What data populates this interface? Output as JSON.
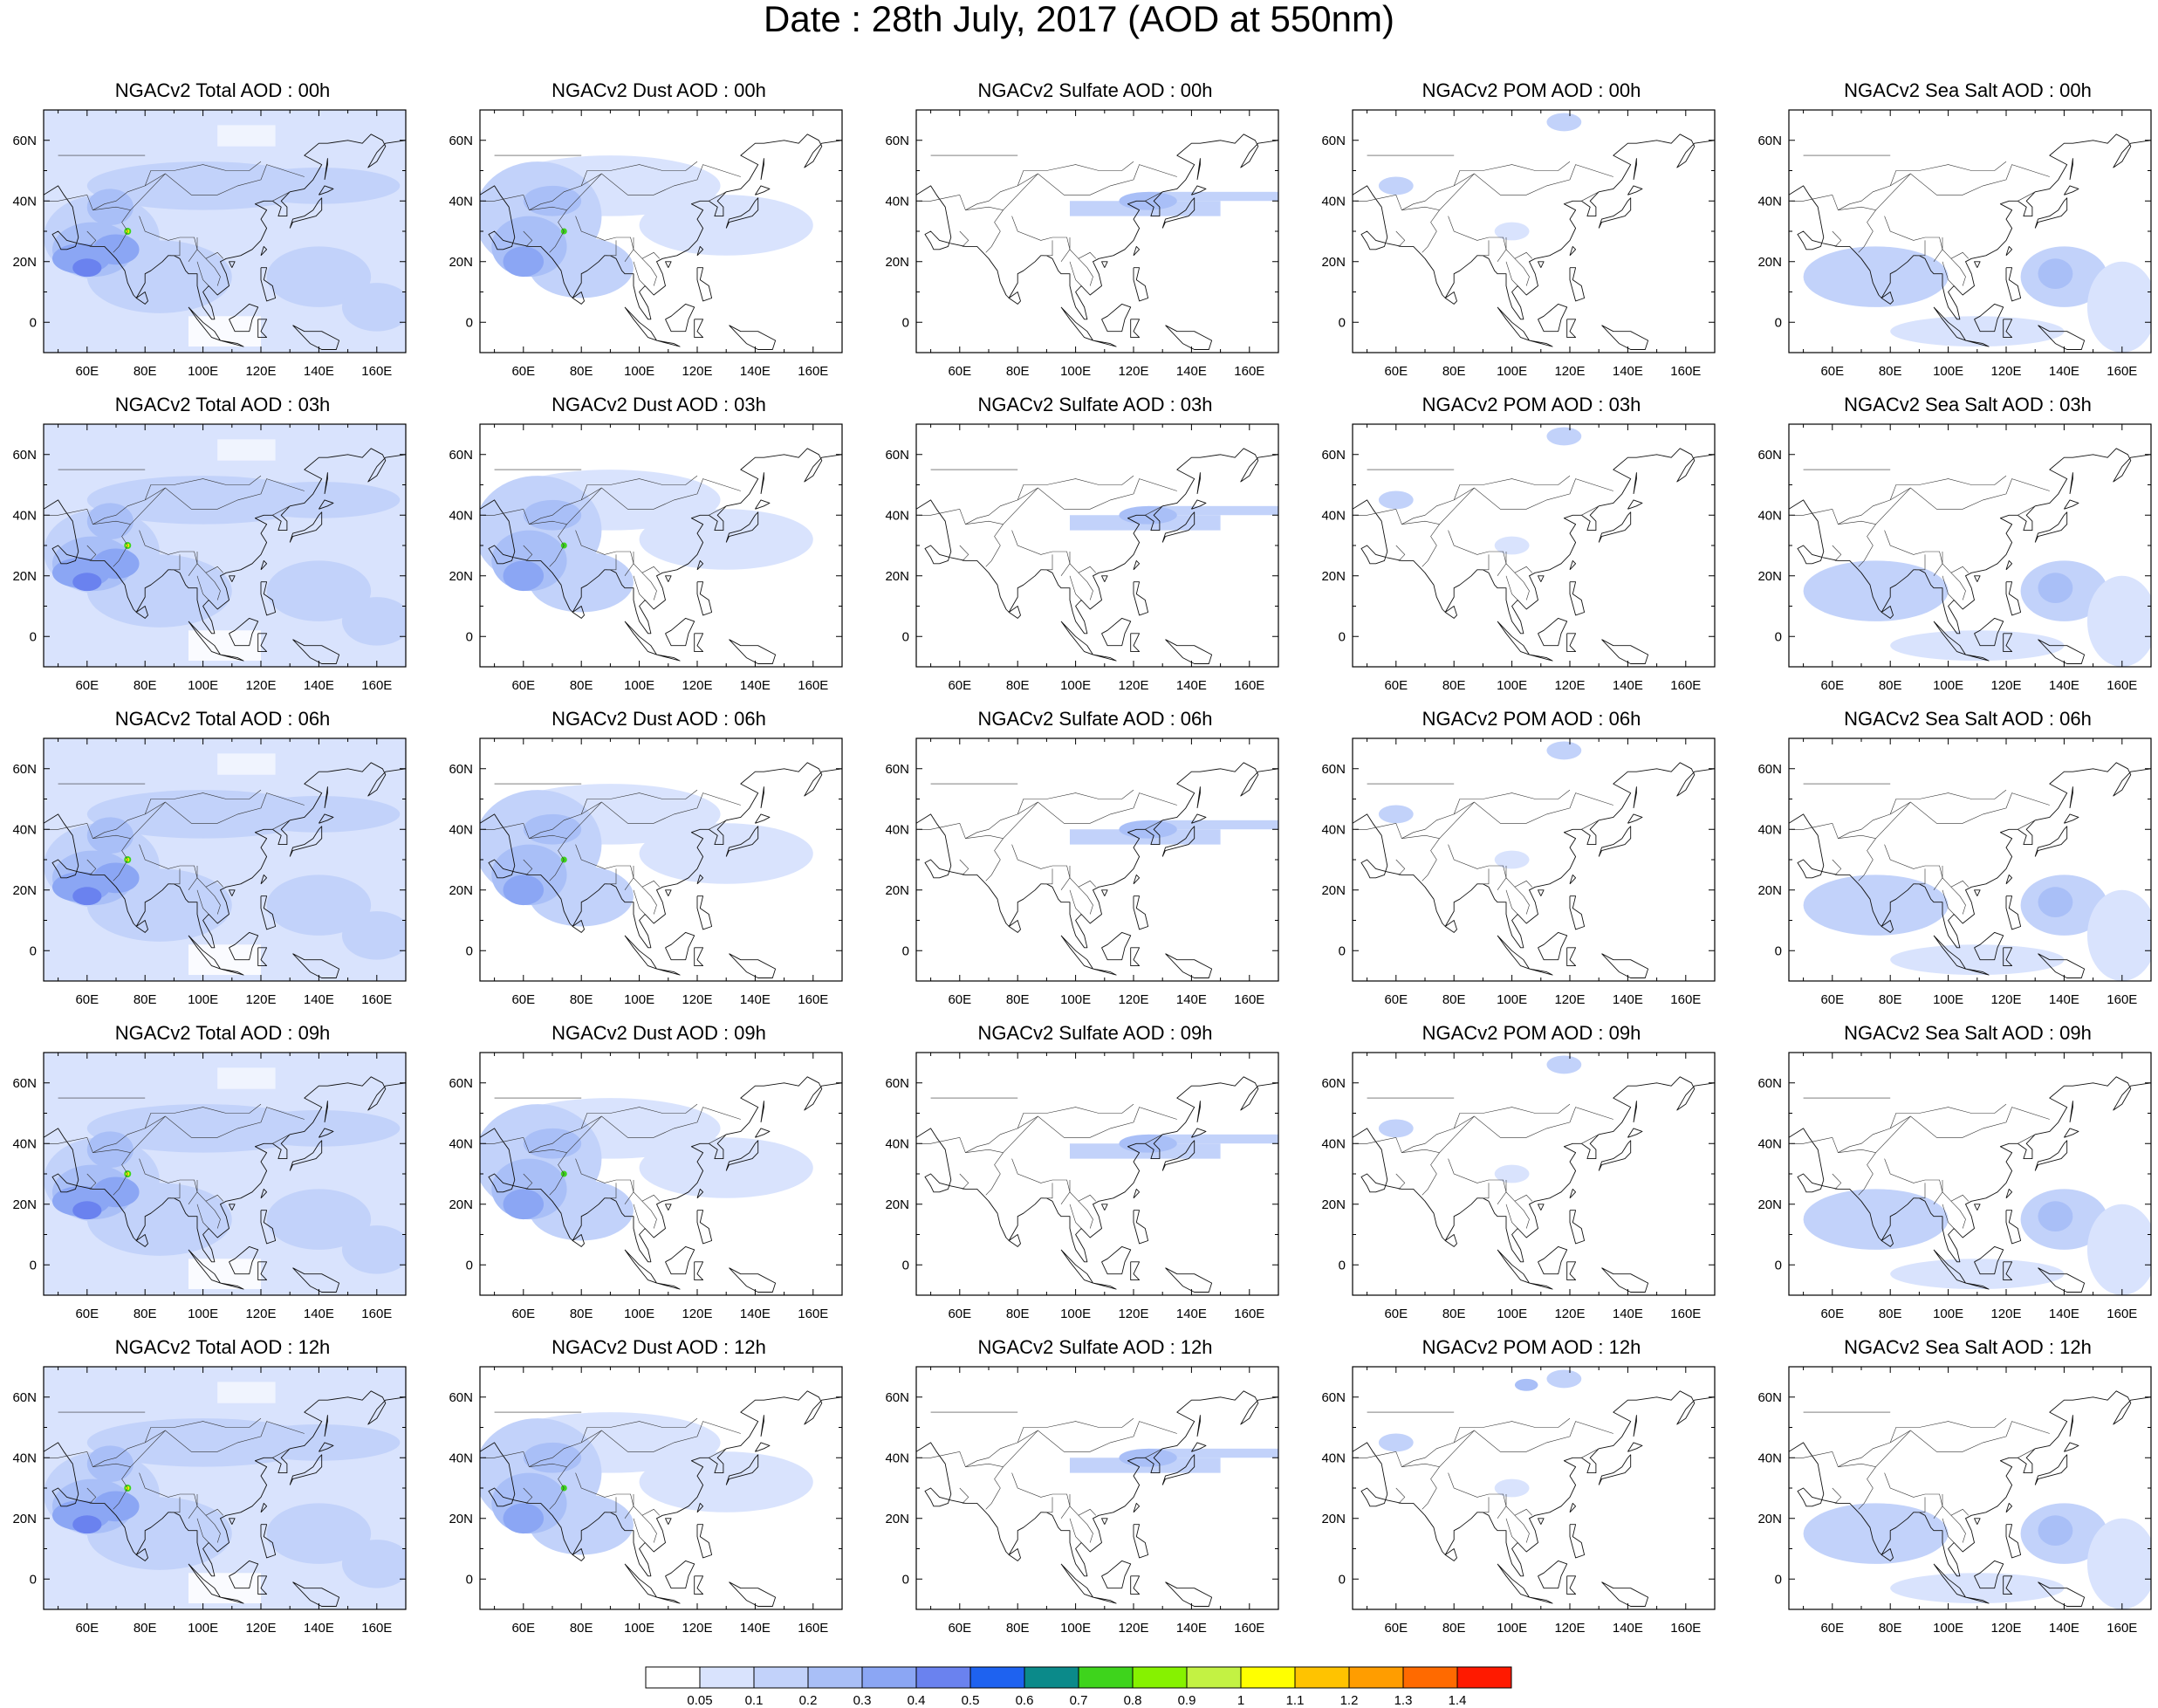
{
  "title": "Date : 28th July, 2017 (AOD at 550nm)",
  "lon_ticks": [
    "60E",
    "80E",
    "100E",
    "120E",
    "140E",
    "160E"
  ],
  "lat_ticks": [
    "60N",
    "40N",
    "20N",
    "0"
  ],
  "colorbar": {
    "labels": [
      "0.05",
      "0.1",
      "0.2",
      "0.3",
      "0.4",
      "0.5",
      "0.6",
      "0.7",
      "0.8",
      "0.9",
      "1",
      "1.1",
      "1.2",
      "1.3",
      "1.4"
    ],
    "colors": [
      "#ffffff",
      "#d9e3fd",
      "#c2d2fa",
      "#a9bff7",
      "#8ba6f4",
      "#6a82ef",
      "#1e62f0",
      "#0b8a8a",
      "#3ed41c",
      "#86f200",
      "#c3f243",
      "#ffff00",
      "#ffc300",
      "#ff9d00",
      "#ff6a00",
      "#ff1a00"
    ]
  },
  "panel_titles": [
    [
      "NGACv2 Total AOD : 00h",
      "NGACv2 Dust AOD : 00h",
      "NGACv2 Sulfate AOD : 00h",
      "NGACv2 POM AOD : 00h",
      "NGACv2 Sea Salt AOD : 00h"
    ],
    [
      "NGACv2 Total AOD : 03h",
      "NGACv2 Dust AOD : 03h",
      "NGACv2 Sulfate AOD : 03h",
      "NGACv2 POM AOD : 03h",
      "NGACv2 Sea Salt AOD : 03h"
    ],
    [
      "NGACv2 Total AOD : 06h",
      "NGACv2 Dust AOD : 06h",
      "NGACv2 Sulfate AOD : 06h",
      "NGACv2 POM AOD : 06h",
      "NGACv2 Sea Salt AOD : 06h"
    ],
    [
      "NGACv2 Total AOD : 09h",
      "NGACv2 Dust AOD : 09h",
      "NGACv2 Sulfate AOD : 09h",
      "NGACv2 POM AOD : 09h",
      "NGACv2 Sea Salt  AOD : 09h"
    ],
    [
      "NGACv2 Total AOD  : 12h",
      "NGACv2 Dust AOD : 12h",
      "NGACv2 Sulfate AOD : 12h",
      "NGACv2 POM  AOD : 12h",
      "NGACv2 Sea Salt  AOD : 12h"
    ]
  ]
}
